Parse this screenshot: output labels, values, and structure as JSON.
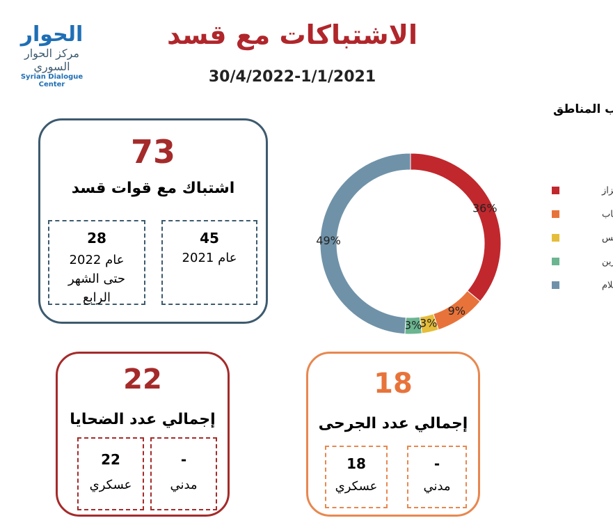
{
  "header": {
    "title": "الاشتباكات مع قسد",
    "date_range": "30/4/2022-1/1/2021",
    "logo_text": "الحوار",
    "logo_org_ar": "مركز الحوار السوري",
    "logo_org_en": "Syrian Dialogue Center"
  },
  "clashes_card": {
    "total": 73,
    "label": "اشتباك مع قوات قسد",
    "breakdown": [
      {
        "value": 45,
        "label": "عام 2021"
      },
      {
        "value": 28,
        "label": "عام 2022 حتى الشهر الرابع"
      }
    ]
  },
  "casualties_card": {
    "total": 22,
    "label": "إجمالي عدد الضحايا",
    "breakdown": [
      {
        "value": "-",
        "label": "مدني"
      },
      {
        "value": 22,
        "label": "عسكري"
      }
    ]
  },
  "wounded_card": {
    "total": 18,
    "label": "إجمالي عدد الجرحى",
    "breakdown": [
      {
        "value": "-",
        "label": "مدني"
      },
      {
        "value": 18,
        "label": "عسكري"
      }
    ]
  },
  "chart_data": {
    "type": "donut",
    "title": "توزع الاشتباكات مع قسد حسب المناطق",
    "categories": [
      "اعزاز",
      "الباب",
      "جرابلس",
      "عفرين",
      "نبع السلام"
    ],
    "values": [
      36,
      9,
      3,
      3,
      49
    ],
    "value_labels": [
      "36%",
      "9%",
      "3%",
      "3%",
      "49%"
    ],
    "colors": [
      "#c0282d",
      "#e8733a",
      "#e6bd3a",
      "#6bb591",
      "#6f92a8"
    ],
    "legend": "right"
  }
}
